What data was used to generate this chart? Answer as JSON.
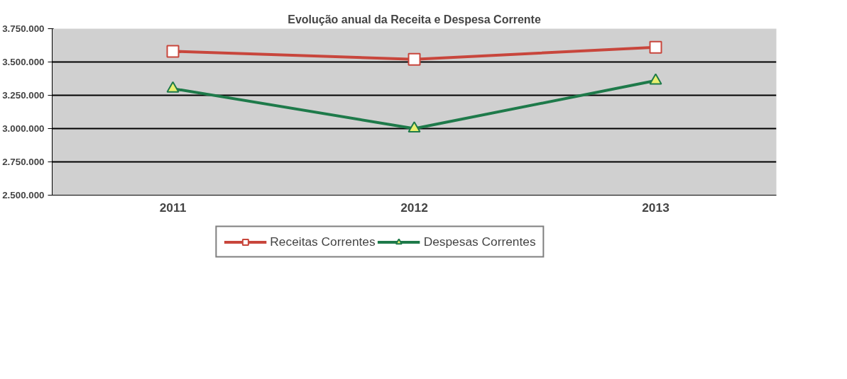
{
  "chart_data": {
    "type": "line",
    "title": "Evolução anual da Receita e Despesa Corrente",
    "categories": [
      "2011",
      "2012",
      "2013"
    ],
    "series": [
      {
        "name": "Receitas Correntes",
        "color": "#c8463c",
        "marker": "square",
        "values": [
          3580000,
          3520000,
          3610000
        ]
      },
      {
        "name": "Despesas Correntes",
        "color": "#1e7a4a",
        "marker": "triangle",
        "values": [
          3300000,
          3000000,
          3360000
        ]
      }
    ],
    "ylim": [
      2500000,
      3750000
    ],
    "yticks": [
      {
        "value": 2500000,
        "label": "2.500.000"
      },
      {
        "value": 2750000,
        "label": "2.750.000"
      },
      {
        "value": 3000000,
        "label": "3.000.000"
      },
      {
        "value": 3250000,
        "label": "3.250.000"
      },
      {
        "value": 3500000,
        "label": "3.500.000"
      },
      {
        "value": 3750000,
        "label": "3.750.000"
      }
    ],
    "grid": "y",
    "legend": "bottom",
    "line_style": "solid"
  }
}
